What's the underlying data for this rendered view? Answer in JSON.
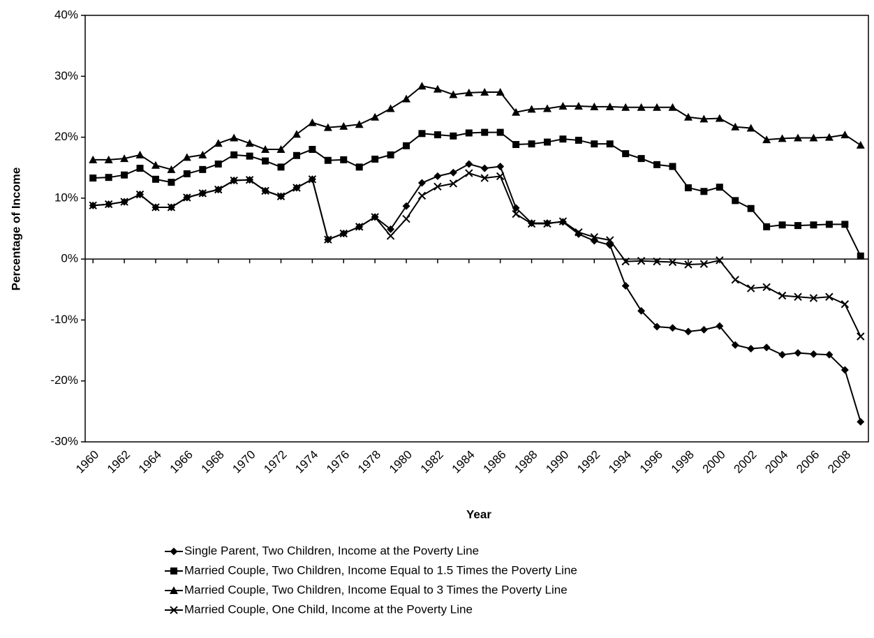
{
  "chart_data": {
    "type": "line",
    "y_label": "Percentage of Income",
    "x_label": "Year",
    "x": [
      1960,
      1961,
      1962,
      1963,
      1964,
      1965,
      1966,
      1967,
      1968,
      1969,
      1970,
      1971,
      1972,
      1973,
      1974,
      1975,
      1976,
      1977,
      1978,
      1979,
      1980,
      1981,
      1982,
      1983,
      1984,
      1985,
      1986,
      1987,
      1988,
      1989,
      1990,
      1991,
      1992,
      1993,
      1994,
      1995,
      1996,
      1997,
      1998,
      1999,
      2000,
      2001,
      2002,
      2003,
      2004,
      2005,
      2006,
      2007,
      2008,
      2009
    ],
    "xlim": [
      1959.5,
      2009.5
    ],
    "xticks": [
      1960,
      1962,
      1964,
      1966,
      1968,
      1970,
      1972,
      1974,
      1976,
      1978,
      1980,
      1982,
      1984,
      1986,
      1988,
      1990,
      1992,
      1994,
      1996,
      1998,
      2000,
      2002,
      2004,
      2006,
      2008
    ],
    "ylim": [
      -30,
      40
    ],
    "yticks": [
      {
        "value": -30,
        "label": "-30%"
      },
      {
        "value": -20,
        "label": "-20%"
      },
      {
        "value": -10,
        "label": "-10%"
      },
      {
        "value": 0,
        "label": "0%"
      },
      {
        "value": 10,
        "label": "10%"
      },
      {
        "value": 20,
        "label": "20%"
      },
      {
        "value": 30,
        "label": "30%"
      },
      {
        "value": 40,
        "label": "40%"
      }
    ],
    "legend": "bottom",
    "series": [
      {
        "name": "Single Parent, Two Children, Income at the Poverty Line",
        "color": "#000000",
        "marker": "diamond",
        "values": [
          8.8,
          9.0,
          9.4,
          10.6,
          8.5,
          8.5,
          10.1,
          10.8,
          11.4,
          12.9,
          13.0,
          11.2,
          10.3,
          11.7,
          13.1,
          3.2,
          4.2,
          5.3,
          6.9,
          4.9,
          8.7,
          12.5,
          13.6,
          14.2,
          15.6,
          14.9,
          15.2,
          8.4,
          5.9,
          5.9,
          6.1,
          4.1,
          3.0,
          2.3,
          -4.4,
          -8.5,
          -11.1,
          -11.3,
          -11.9,
          -11.6,
          -11.0,
          -14.1,
          -14.7,
          -14.5,
          -15.7,
          -15.4,
          -15.6,
          -15.7,
          -18.2,
          -26.7
        ]
      },
      {
        "name": "Married Couple, Two Children, Income Equal to 1.5 Times the Poverty Line",
        "color": "#000000",
        "marker": "square",
        "values": [
          13.3,
          13.4,
          13.8,
          14.9,
          13.1,
          12.6,
          14.0,
          14.7,
          15.6,
          17.1,
          16.9,
          16.1,
          15.1,
          17.0,
          18.0,
          16.2,
          16.3,
          15.1,
          16.4,
          17.1,
          18.6,
          20.6,
          20.4,
          20.2,
          20.7,
          20.8,
          20.8,
          18.8,
          18.9,
          19.2,
          19.7,
          19.5,
          18.9,
          18.9,
          17.3,
          16.5,
          15.5,
          15.2,
          11.7,
          11.1,
          11.8,
          9.6,
          8.3,
          5.3,
          5.6,
          5.5,
          5.6,
          5.7,
          5.7,
          0.5
        ]
      },
      {
        "name": "Married Couple, Two Children, Income Equal to 3 Times the Poverty Line",
        "color": "#000000",
        "marker": "triangle",
        "values": [
          16.3,
          16.3,
          16.5,
          17.1,
          15.4,
          14.7,
          16.7,
          17.1,
          19.0,
          19.9,
          19.0,
          18.0,
          18.0,
          20.5,
          22.4,
          21.6,
          21.8,
          22.1,
          23.3,
          24.7,
          26.3,
          28.4,
          27.9,
          27.0,
          27.3,
          27.4,
          27.4,
          24.1,
          24.6,
          24.7,
          25.1,
          25.1,
          25.0,
          25.0,
          24.9,
          24.9,
          24.9,
          24.9,
          23.3,
          23.0,
          23.1,
          21.7,
          21.5,
          19.6,
          19.8,
          19.9,
          19.9,
          20.0,
          20.4,
          18.7
        ]
      },
      {
        "name": "Married Couple, One Child, Income at the Poverty Line",
        "color": "#000000",
        "marker": "x",
        "values": [
          8.8,
          9.0,
          9.4,
          10.6,
          8.5,
          8.5,
          10.1,
          10.8,
          11.4,
          12.9,
          13.0,
          11.2,
          10.3,
          11.7,
          13.1,
          3.2,
          4.2,
          5.3,
          6.9,
          3.8,
          6.6,
          10.4,
          11.9,
          12.4,
          14.1,
          13.3,
          13.6,
          7.4,
          5.8,
          5.8,
          6.2,
          4.4,
          3.6,
          3.1,
          -0.4,
          -0.3,
          -0.4,
          -0.5,
          -0.9,
          -0.8,
          -0.2,
          -3.4,
          -4.8,
          -4.6,
          -6.0,
          -6.2,
          -6.4,
          -6.2,
          -7.4,
          -12.7
        ]
      }
    ]
  }
}
